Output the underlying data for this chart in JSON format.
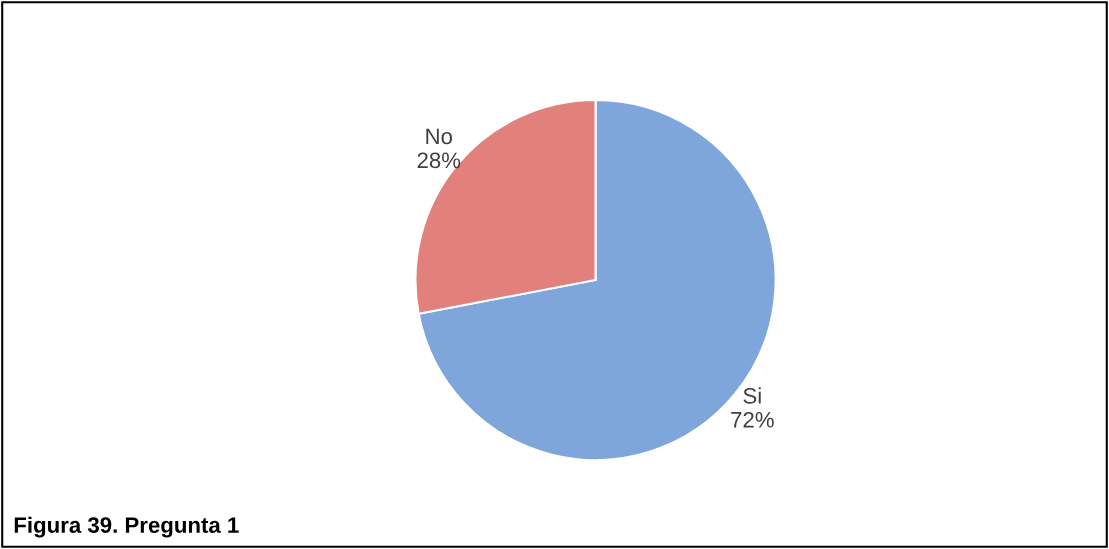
{
  "chart_data": {
    "type": "pie",
    "categories": [
      "Si",
      "No"
    ],
    "values": [
      72,
      28
    ],
    "value_labels": [
      "72%",
      "28%"
    ],
    "colors": [
      "#7ea6da",
      "#e2817b"
    ],
    "annotations": [
      "Figura 39. Pregunta 1"
    ]
  }
}
